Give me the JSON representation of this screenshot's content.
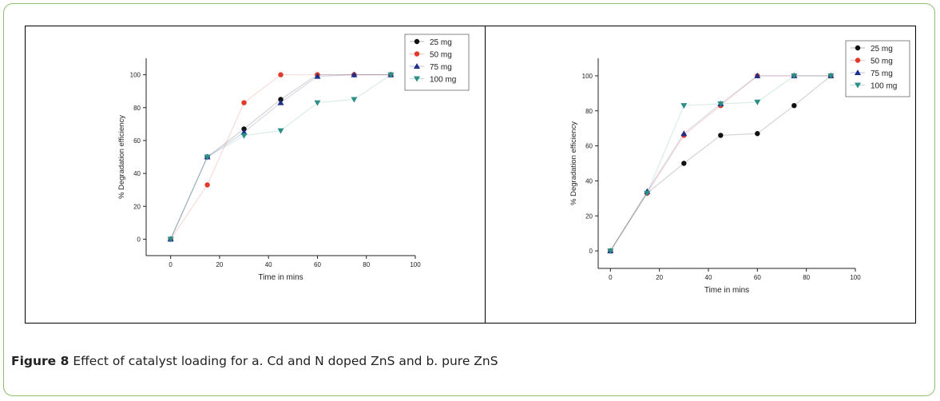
{
  "caption": {
    "label": "Figure 8",
    "text": "Effect of catalyst loading for a. Cd and N doped ZnS and b. pure ZnS"
  },
  "colors": {
    "25 mg": "#111111",
    "50 mg": "#e03a2a",
    "75 mg": "#1c2f8a",
    "100 mg": "#2a8f86",
    "frame": "#8fbf6a"
  },
  "chart_data": [
    {
      "type": "line",
      "title": "",
      "xlabel": "Time in mins",
      "ylabel": "% Degradation efficiency",
      "xlim": [
        -10,
        100
      ],
      "ylim": [
        -10,
        110
      ],
      "xticks": [
        0,
        20,
        40,
        60,
        80,
        100
      ],
      "yticks": [
        0,
        20,
        40,
        60,
        80,
        100
      ],
      "grid": false,
      "legend": "top-right",
      "series": [
        {
          "name": "25 mg",
          "marker": "circle",
          "x": [
            0,
            15,
            30,
            45,
            60,
            75,
            90
          ],
          "y": [
            0,
            50,
            67,
            85,
            100,
            100,
            100
          ]
        },
        {
          "name": "50 mg",
          "marker": "circle",
          "x": [
            0,
            15,
            30,
            45,
            60,
            75,
            90
          ],
          "y": [
            0,
            33,
            83,
            100,
            100,
            100,
            100
          ]
        },
        {
          "name": "75 mg",
          "marker": "triangle-up",
          "x": [
            0,
            15,
            30,
            45,
            60,
            75,
            90
          ],
          "y": [
            0,
            50,
            65,
            83,
            99,
            100,
            100
          ]
        },
        {
          "name": "100 mg",
          "marker": "triangle-down",
          "x": [
            0,
            15,
            30,
            45,
            60,
            75,
            90
          ],
          "y": [
            0,
            50,
            63,
            66,
            83,
            85,
            100
          ]
        }
      ]
    },
    {
      "type": "line",
      "title": "",
      "xlabel": "Time in mins",
      "ylabel": "% Degradation efficiency",
      "xlim": [
        -5,
        100
      ],
      "ylim": [
        -10,
        110
      ],
      "xticks": [
        0,
        20,
        40,
        60,
        80,
        100
      ],
      "yticks": [
        0,
        20,
        40,
        60,
        80,
        100
      ],
      "grid": false,
      "legend": "top-right",
      "series": [
        {
          "name": "25 mg",
          "marker": "circle",
          "x": [
            0,
            15,
            30,
            45,
            60,
            75,
            90
          ],
          "y": [
            0,
            33,
            50,
            66,
            67,
            83,
            100
          ]
        },
        {
          "name": "50 mg",
          "marker": "circle",
          "x": [
            0,
            15,
            30,
            45,
            60,
            75,
            90
          ],
          "y": [
            0,
            33,
            66,
            83,
            100,
            100,
            100
          ]
        },
        {
          "name": "75 mg",
          "marker": "triangle-up",
          "x": [
            0,
            15,
            30,
            45,
            60,
            75,
            90
          ],
          "y": [
            0,
            34,
            67,
            84,
            100,
            100,
            100
          ]
        },
        {
          "name": "100 mg",
          "marker": "triangle-down",
          "x": [
            0,
            15,
            30,
            45,
            60,
            75,
            90
          ],
          "y": [
            0,
            33,
            83,
            84,
            85,
            100,
            100
          ]
        }
      ]
    }
  ]
}
